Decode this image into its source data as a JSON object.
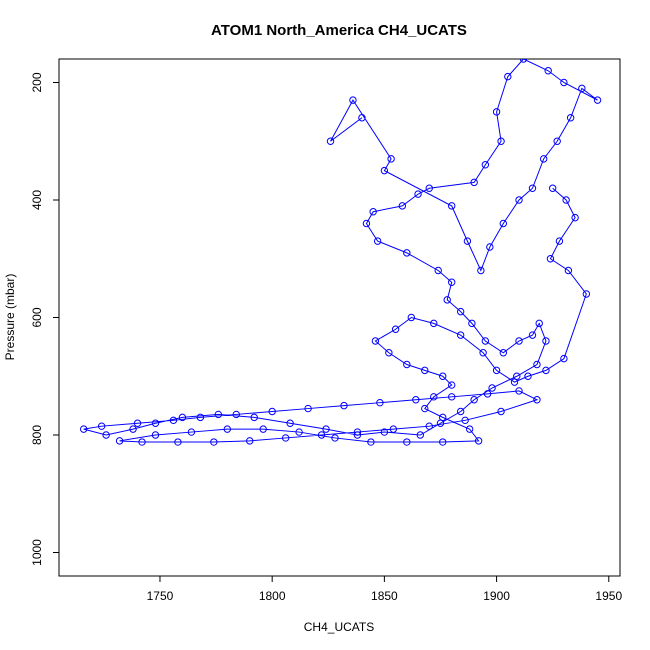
{
  "chart_data": {
    "type": "line",
    "title": "ATOM1 North_America CH4_UCATS",
    "xlabel": "CH4_UCATS",
    "ylabel": "Pressure (mbar)",
    "xlim": [
      1705,
      1955
    ],
    "ylim": [
      1040,
      160
    ],
    "y_axis_inverted": true,
    "x_ticks": [
      1750,
      1800,
      1850,
      1900,
      1950
    ],
    "y_ticks": [
      200,
      400,
      600,
      800,
      1000
    ],
    "line_color": "#0000ff",
    "marker": "open-circle",
    "grid": false,
    "legend": false,
    "series": [
      {
        "points": [
          [
            1840,
            260
          ],
          [
            1826,
            300
          ],
          [
            1836,
            230
          ],
          [
            1853,
            330
          ],
          [
            1850,
            350
          ],
          [
            1880,
            410
          ],
          [
            1887,
            470
          ],
          [
            1893,
            520
          ],
          [
            1897,
            480
          ],
          [
            1903,
            440
          ],
          [
            1910,
            400
          ],
          [
            1916,
            380
          ],
          [
            1921,
            330
          ],
          [
            1927,
            300
          ],
          [
            1933,
            260
          ],
          [
            1938,
            210
          ],
          [
            1945,
            230
          ],
          [
            1930,
            200
          ],
          [
            1923,
            180
          ],
          [
            1912,
            160
          ],
          [
            1905,
            190
          ],
          [
            1900,
            250
          ],
          [
            1902,
            300
          ],
          [
            1895,
            340
          ],
          [
            1890,
            370
          ],
          [
            1870,
            380
          ],
          [
            1865,
            390
          ],
          [
            1858,
            410
          ],
          [
            1845,
            420
          ],
          [
            1842,
            440
          ],
          [
            1847,
            470
          ],
          [
            1860,
            490
          ],
          [
            1874,
            520
          ],
          [
            1880,
            540
          ],
          [
            1878,
            570
          ],
          [
            1884,
            590
          ],
          [
            1889,
            610
          ],
          [
            1895,
            640
          ],
          [
            1903,
            660
          ],
          [
            1910,
            640
          ],
          [
            1916,
            630
          ],
          [
            1919,
            610
          ],
          [
            1922,
            640
          ],
          [
            1918,
            680
          ],
          [
            1909,
            700
          ],
          [
            1898,
            720
          ],
          [
            1890,
            740
          ],
          [
            1884,
            760
          ],
          [
            1875,
            780
          ],
          [
            1866,
            800
          ],
          [
            1850,
            795
          ],
          [
            1838,
            800
          ],
          [
            1824,
            790
          ],
          [
            1808,
            780
          ],
          [
            1792,
            770
          ],
          [
            1776,
            765
          ],
          [
            1760,
            770
          ],
          [
            1748,
            780
          ],
          [
            1738,
            790
          ],
          [
            1726,
            800
          ],
          [
            1716,
            790
          ],
          [
            1724,
            785
          ],
          [
            1740,
            780
          ],
          [
            1756,
            775
          ],
          [
            1768,
            770
          ],
          [
            1784,
            765
          ],
          [
            1800,
            760
          ],
          [
            1816,
            755
          ],
          [
            1832,
            750
          ],
          [
            1848,
            745
          ],
          [
            1864,
            740
          ],
          [
            1880,
            735
          ],
          [
            1896,
            730
          ],
          [
            1910,
            725
          ],
          [
            1918,
            740
          ],
          [
            1902,
            760
          ],
          [
            1886,
            775
          ],
          [
            1870,
            785
          ],
          [
            1854,
            790
          ],
          [
            1838,
            795
          ],
          [
            1822,
            800
          ],
          [
            1806,
            805
          ],
          [
            1790,
            810
          ],
          [
            1774,
            812
          ],
          [
            1758,
            812
          ],
          [
            1742,
            812
          ],
          [
            1732,
            810
          ],
          [
            1748,
            800
          ],
          [
            1764,
            795
          ],
          [
            1780,
            790
          ],
          [
            1796,
            790
          ],
          [
            1812,
            795
          ],
          [
            1828,
            805
          ],
          [
            1844,
            812
          ],
          [
            1860,
            812
          ],
          [
            1876,
            812
          ],
          [
            1892,
            810
          ],
          [
            1888,
            790
          ],
          [
            1876,
            770
          ],
          [
            1868,
            755
          ],
          [
            1872,
            735
          ],
          [
            1880,
            715
          ],
          [
            1876,
            700
          ],
          [
            1868,
            690
          ],
          [
            1860,
            680
          ],
          [
            1852,
            660
          ],
          [
            1846,
            640
          ],
          [
            1855,
            620
          ],
          [
            1862,
            600
          ],
          [
            1872,
            610
          ],
          [
            1884,
            630
          ],
          [
            1894,
            660
          ],
          [
            1900,
            690
          ],
          [
            1908,
            710
          ],
          [
            1914,
            700
          ],
          [
            1922,
            690
          ],
          [
            1930,
            670
          ],
          [
            1940,
            560
          ],
          [
            1932,
            520
          ],
          [
            1924,
            500
          ],
          [
            1928,
            470
          ],
          [
            1935,
            430
          ],
          [
            1931,
            400
          ],
          [
            1925,
            380
          ]
        ]
      }
    ]
  }
}
